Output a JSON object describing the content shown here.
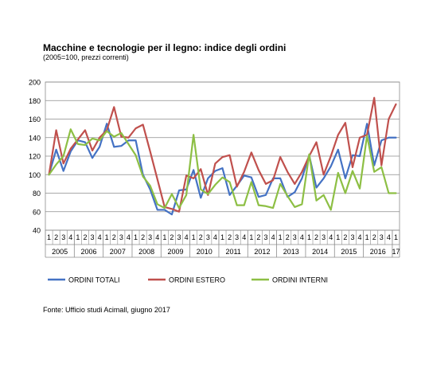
{
  "chart_data": {
    "type": "line",
    "title": "Macchine e tecnologie per il legno: indice degli ordini",
    "subtitle": "(2005=100, prezzi correnti)",
    "source": "Fonte: Ufficio studi Acimall, giugno 2017",
    "xlabel": "",
    "ylabel": "",
    "ylim": [
      40,
      200
    ],
    "yticks": [
      40,
      60,
      80,
      100,
      120,
      140,
      160,
      180,
      200
    ],
    "grid": true,
    "legend_position": "bottom",
    "quarter_labels": [
      "1",
      "2",
      "3",
      "4",
      "1",
      "2",
      "3",
      "4",
      "1",
      "2",
      "3",
      "4",
      "1",
      "2",
      "3",
      "4",
      "1",
      "2",
      "3",
      "4",
      "1",
      "2",
      "3",
      "4",
      "1",
      "2",
      "3",
      "4",
      "1",
      "2",
      "3",
      "4",
      "1",
      "2",
      "3",
      "4",
      "1",
      "2",
      "3",
      "4",
      "1",
      "2",
      "3",
      "4",
      "1",
      "2",
      "3",
      "4",
      "1"
    ],
    "year_groups": [
      {
        "label": "2005",
        "quarters": 4
      },
      {
        "label": "2006",
        "quarters": 4
      },
      {
        "label": "2007",
        "quarters": 4
      },
      {
        "label": "2008",
        "quarters": 4
      },
      {
        "label": "2009",
        "quarters": 4
      },
      {
        "label": "2010",
        "quarters": 4
      },
      {
        "label": "2011",
        "quarters": 4
      },
      {
        "label": "2012",
        "quarters": 4
      },
      {
        "label": "2013",
        "quarters": 4
      },
      {
        "label": "2014",
        "quarters": 4
      },
      {
        "label": "2015",
        "quarters": 4
      },
      {
        "label": "2016",
        "quarters": 4
      },
      {
        "label": "17",
        "quarters": 1
      }
    ],
    "series": [
      {
        "name": "ORDINI TOTALI",
        "color": "#4472c4",
        "values": [
          100,
          127,
          104,
          125,
          137,
          135,
          118,
          130,
          155,
          130,
          131,
          137,
          137,
          100,
          84,
          62,
          62,
          57,
          83,
          84,
          105,
          75,
          96,
          104,
          107,
          78,
          88,
          99,
          97,
          76,
          78,
          96,
          96,
          76,
          81,
          96,
          121,
          86,
          96,
          109,
          127,
          96,
          121,
          120,
          155,
          110,
          137,
          140,
          140
        ]
      },
      {
        "name": "ORDINI ESTERO",
        "color": "#c0504d",
        "values": [
          100,
          148,
          112,
          128,
          138,
          148,
          126,
          140,
          148,
          173,
          141,
          140,
          150,
          154,
          125,
          95,
          65,
          63,
          60,
          99,
          96,
          106,
          78,
          112,
          119,
          121,
          87,
          103,
          124,
          105,
          90,
          94,
          119,
          103,
          90,
          103,
          120,
          135,
          100,
          120,
          143,
          156,
          108,
          140,
          143,
          183,
          110,
          160,
          176
        ]
      },
      {
        "name": "ORDINI INTERNI",
        "color": "#8dbf44",
        "values": [
          100,
          111,
          120,
          149,
          133,
          132,
          139,
          137,
          147,
          141,
          145,
          133,
          121,
          98,
          88,
          68,
          64,
          79,
          64,
          78,
          143,
          84,
          79,
          89,
          97,
          92,
          67,
          67,
          92,
          67,
          66,
          64,
          90,
          77,
          65,
          68,
          122,
          72,
          78,
          62,
          102,
          80,
          104,
          85,
          142,
          103,
          108,
          80,
          80
        ]
      }
    ]
  }
}
